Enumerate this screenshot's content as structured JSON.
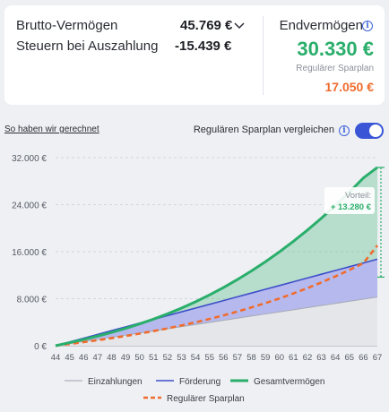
{
  "summary": {
    "brutto_label": "Brutto-Vermögen",
    "brutto_value": "45.769 €",
    "steuern_label": "Steuern bei Auszahlung",
    "steuern_value": "-15.439 €"
  },
  "end": {
    "label": "Endvermögen",
    "value": "30.330 €",
    "sparplan_label": "Regulärer Sparplan",
    "sparplan_value": "17.050 €"
  },
  "controls": {
    "calc_link": "So haben wir gerechnet",
    "compare_label": "Regulären Sparplan vergleichen",
    "compare_on": true
  },
  "colors": {
    "accent": "#3a56d6",
    "gesamt": "#2aae6b",
    "sparplan": "#f06c2d",
    "foerderung": "#3e4fc9",
    "einzahlungen": "#b9bcc4"
  },
  "chart_data": {
    "type": "area",
    "x": [
      44,
      45,
      46,
      47,
      48,
      49,
      50,
      51,
      52,
      53,
      54,
      55,
      56,
      57,
      58,
      59,
      60,
      61,
      62,
      63,
      64,
      65,
      66,
      67
    ],
    "ylim": [
      0,
      32000
    ],
    "yticks": [
      "0 €",
      "8.000 €",
      "16.000 €",
      "24.000 €",
      "32.000 €"
    ],
    "grid": true,
    "series": [
      {
        "name": "Einzahlungen",
        "values": [
          0,
          360,
          720,
          1080,
          1440,
          1800,
          2160,
          2520,
          2880,
          3240,
          3600,
          3960,
          4320,
          4680,
          5040,
          5400,
          5760,
          6120,
          6480,
          6840,
          7200,
          7560,
          7920,
          8280
        ]
      },
      {
        "name": "Förderung",
        "values": [
          0,
          640,
          1280,
          1920,
          2560,
          3200,
          3840,
          4480,
          5120,
          5760,
          6400,
          7040,
          7680,
          8320,
          8960,
          9600,
          10240,
          10880,
          11520,
          12160,
          12800,
          13440,
          14080,
          14720
        ]
      },
      {
        "name": "Gesamtvermögen",
        "values": [
          0,
          520,
          1060,
          1640,
          2260,
          2950,
          3700,
          4520,
          5420,
          6400,
          7470,
          8640,
          9900,
          11260,
          12720,
          14290,
          15970,
          17760,
          19670,
          21700,
          23850,
          26130,
          28540,
          30330
        ]
      },
      {
        "name": "Regulärer Sparplan",
        "values": [
          0,
          300,
          610,
          940,
          1290,
          1660,
          2060,
          2490,
          2950,
          3450,
          3980,
          4550,
          5160,
          5810,
          6510,
          7250,
          8040,
          8890,
          9800,
          10760,
          11790,
          12880,
          14040,
          17050
        ]
      }
    ],
    "annotation": {
      "label": "Vorteil:",
      "value": "+ 13.280 €"
    },
    "legend": [
      "Einzahlungen",
      "Förderung",
      "Gesamtvermögen",
      "Regulärer Sparplan"
    ],
    "legend_position": "bottom"
  }
}
